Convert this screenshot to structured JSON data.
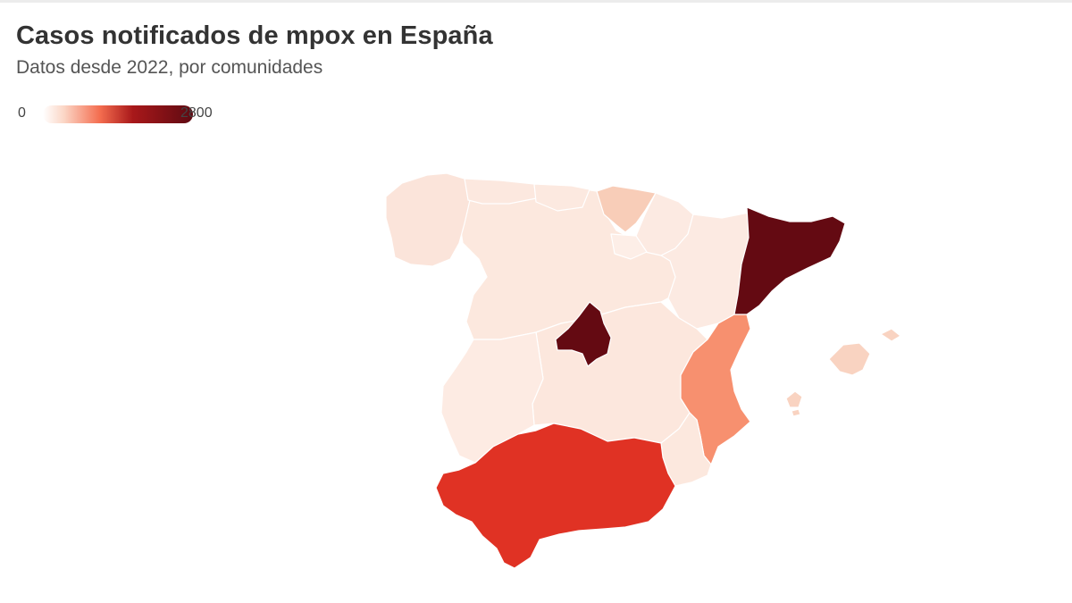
{
  "title": "Casos notificados de mpox en España",
  "subtitle": "Datos desde 2022, por comunidades",
  "legend": {
    "min": "0",
    "max": "2800"
  },
  "colors": {
    "scale": [
      "#ffffff",
      "#fbd6c6",
      "#f46d4f",
      "#a8181a",
      "#5e0a12"
    ],
    "region_levels": {
      "galicia": "#fbe4da",
      "asturias": "#fce8df",
      "cantabria": "#fce9e0",
      "pais_vasco": "#f8cdb8",
      "navarra": "#fceae2",
      "la_rioja": "#fdeee7",
      "aragon": "#fceae2",
      "cataluna": "#640a12",
      "castilla_leon": "#fce8de",
      "madrid": "#640a12",
      "castilla_la_mancha": "#fce7dd",
      "extremadura": "#fdebe3",
      "comunitat_valenciana": "#f7906f",
      "murcia": "#fce8de",
      "andalucia": "#e03224",
      "illes_balears": "#f9d3c1"
    }
  },
  "chart_data": {
    "type": "choropleth",
    "title": "Casos notificados de mpox en España",
    "subtitle": "Datos desde 2022, por comunidades",
    "scale_range": [
      0,
      2800
    ],
    "regions": [
      "galicia",
      "asturias",
      "cantabria",
      "pais_vasco",
      "navarra",
      "la_rioja",
      "aragon",
      "cataluna",
      "castilla_leon",
      "madrid",
      "castilla_la_mancha",
      "extremadura",
      "comunitat_valenciana",
      "murcia",
      "andalucia",
      "illes_balears"
    ]
  }
}
